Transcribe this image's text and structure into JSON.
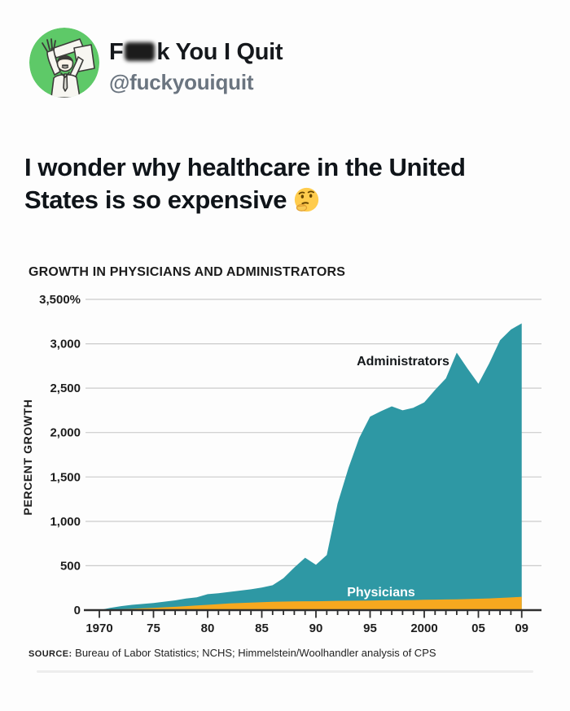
{
  "post": {
    "avatar": {
      "icon": "man-throwing-papers-icon",
      "bg_color": "#5ec968"
    },
    "display_name_prefix": "F",
    "display_name_suffix": "k You I Quit",
    "handle": "@fuckyouiquit",
    "body_lines": [
      "I wonder why healthcare in the United",
      "States is so expensive"
    ],
    "emoji_icon": "thinking-face-emoji",
    "emoji_char": "🤔"
  },
  "chart_data": {
    "type": "area",
    "title": "GROWTH IN PHYSICIANS AND ADMINISTRATORS",
    "xlabel": "",
    "ylabel": "PERCENT GROWTH",
    "ylim": [
      0,
      3500
    ],
    "grid": "horizontal",
    "legend_position": "inline-annotations",
    "x": [
      1970,
      1971,
      1972,
      1973,
      1974,
      1975,
      1976,
      1977,
      1978,
      1979,
      1980,
      1981,
      1982,
      1983,
      1984,
      1985,
      1986,
      1987,
      1988,
      1989,
      1990,
      1991,
      1992,
      1993,
      1994,
      1995,
      1996,
      1997,
      1998,
      1999,
      2000,
      2001,
      2002,
      2003,
      2004,
      2005,
      2006,
      2007,
      2008,
      2009
    ],
    "series": [
      {
        "name": "Administrators",
        "color": "#2E98A4",
        "values": [
          0,
          25,
          45,
          60,
          70,
          80,
          95,
          110,
          130,
          145,
          180,
          190,
          205,
          220,
          235,
          255,
          280,
          360,
          480,
          590,
          510,
          620,
          1200,
          1600,
          1940,
          2180,
          2240,
          2295,
          2250,
          2280,
          2340,
          2480,
          2610,
          2900,
          2720,
          2550,
          2780,
          3040,
          3160,
          3230
        ]
      },
      {
        "name": "Physicians",
        "color": "#F6A81F",
        "values": [
          0,
          5,
          10,
          15,
          20,
          25,
          32,
          38,
          45,
          52,
          60,
          68,
          75,
          80,
          85,
          90,
          93,
          96,
          98,
          100,
          100,
          102,
          104,
          105,
          106,
          108,
          110,
          112,
          113,
          114,
          116,
          118,
          120,
          122,
          125,
          128,
          132,
          137,
          143,
          150
        ]
      }
    ],
    "y_ticks": [
      {
        "value": 0,
        "label": "0"
      },
      {
        "value": 500,
        "label": "500"
      },
      {
        "value": 1000,
        "label": "1,000"
      },
      {
        "value": 1500,
        "label": "1,500"
      },
      {
        "value": 2000,
        "label": "2,000"
      },
      {
        "value": 2500,
        "label": "2,500"
      },
      {
        "value": 3000,
        "label": "3,000"
      },
      {
        "value": 3500,
        "label": "3,500%"
      }
    ],
    "x_tick_labels": {
      "1970": "1970",
      "1975": "75",
      "1980": "80",
      "1985": "85",
      "1990": "90",
      "1995": "95",
      "2000": "2000",
      "2005": "05",
      "2009": "09"
    },
    "source_prefix": "SOURCE:",
    "source_text": " Bureau of Labor Statistics; NCHS; Himmelstein/Woolhandler analysis of CPS"
  }
}
